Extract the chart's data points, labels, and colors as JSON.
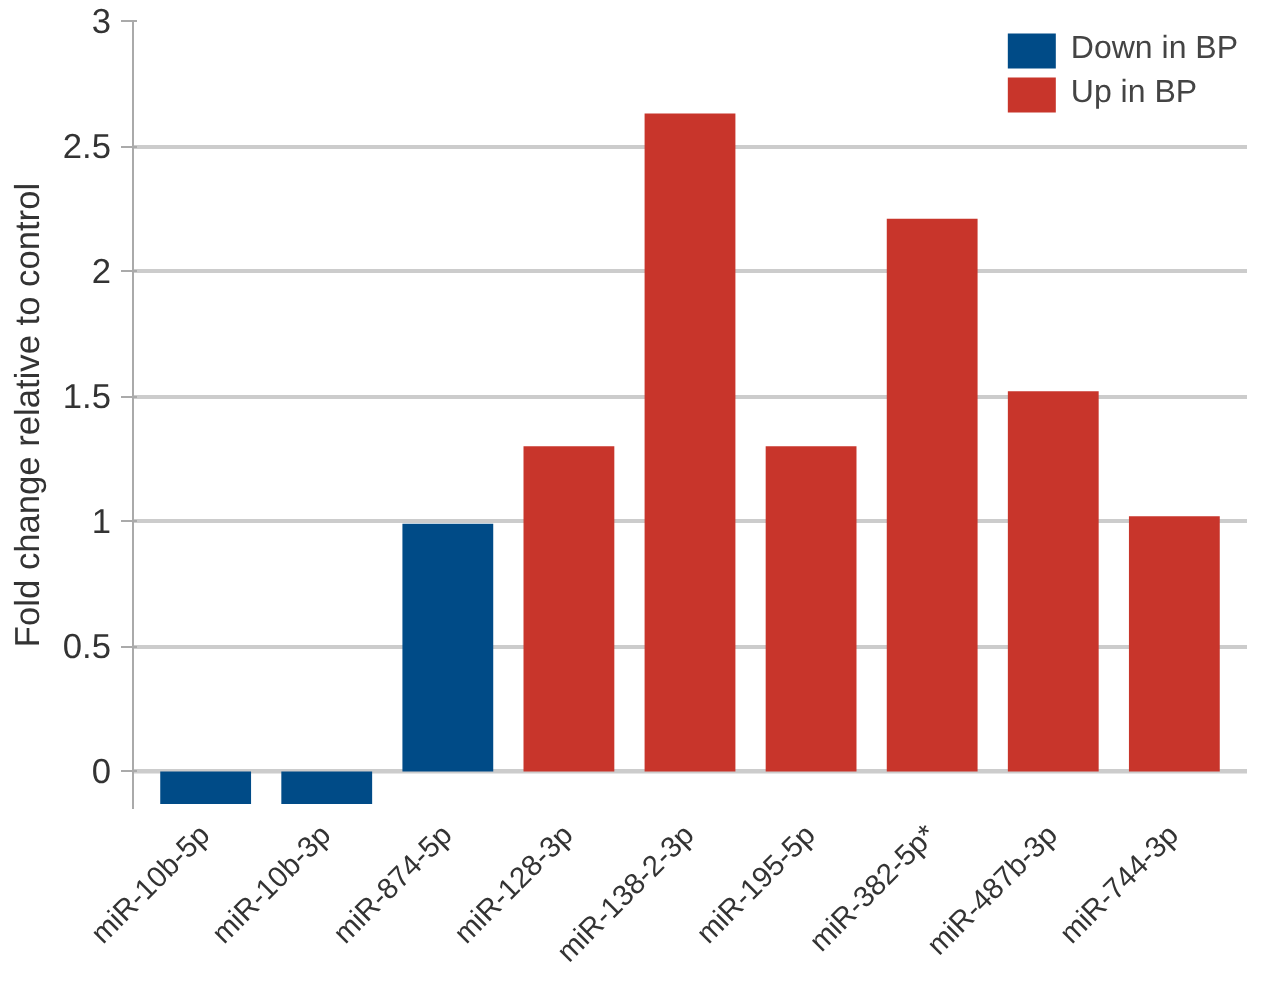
{
  "chart_data": {
    "type": "bar",
    "ylabel": "Fold change relative to control",
    "categories": [
      "miR-10b-5p",
      "miR-10b-3p",
      "miR-874-5p",
      "miR-128-3p",
      "miR-138-2-3p",
      "miR-195-5p",
      "miR-382-5p*",
      "miR-487b-3p",
      "miR-744-3p"
    ],
    "series": [
      {
        "name": "Down in BP",
        "color": "#004b87",
        "values": [
          -0.13,
          -0.13,
          0.99,
          null,
          null,
          null,
          null,
          null,
          null
        ]
      },
      {
        "name": "Up in BP",
        "color": "#c8352b",
        "values": [
          null,
          null,
          null,
          1.3,
          2.63,
          1.3,
          2.21,
          1.52,
          1.02
        ]
      }
    ],
    "ylim": [
      -0.15,
      3
    ],
    "yticks": [
      0,
      0.5,
      1,
      1.5,
      2,
      2.5,
      3
    ],
    "grid": "y",
    "legend": "top right"
  }
}
